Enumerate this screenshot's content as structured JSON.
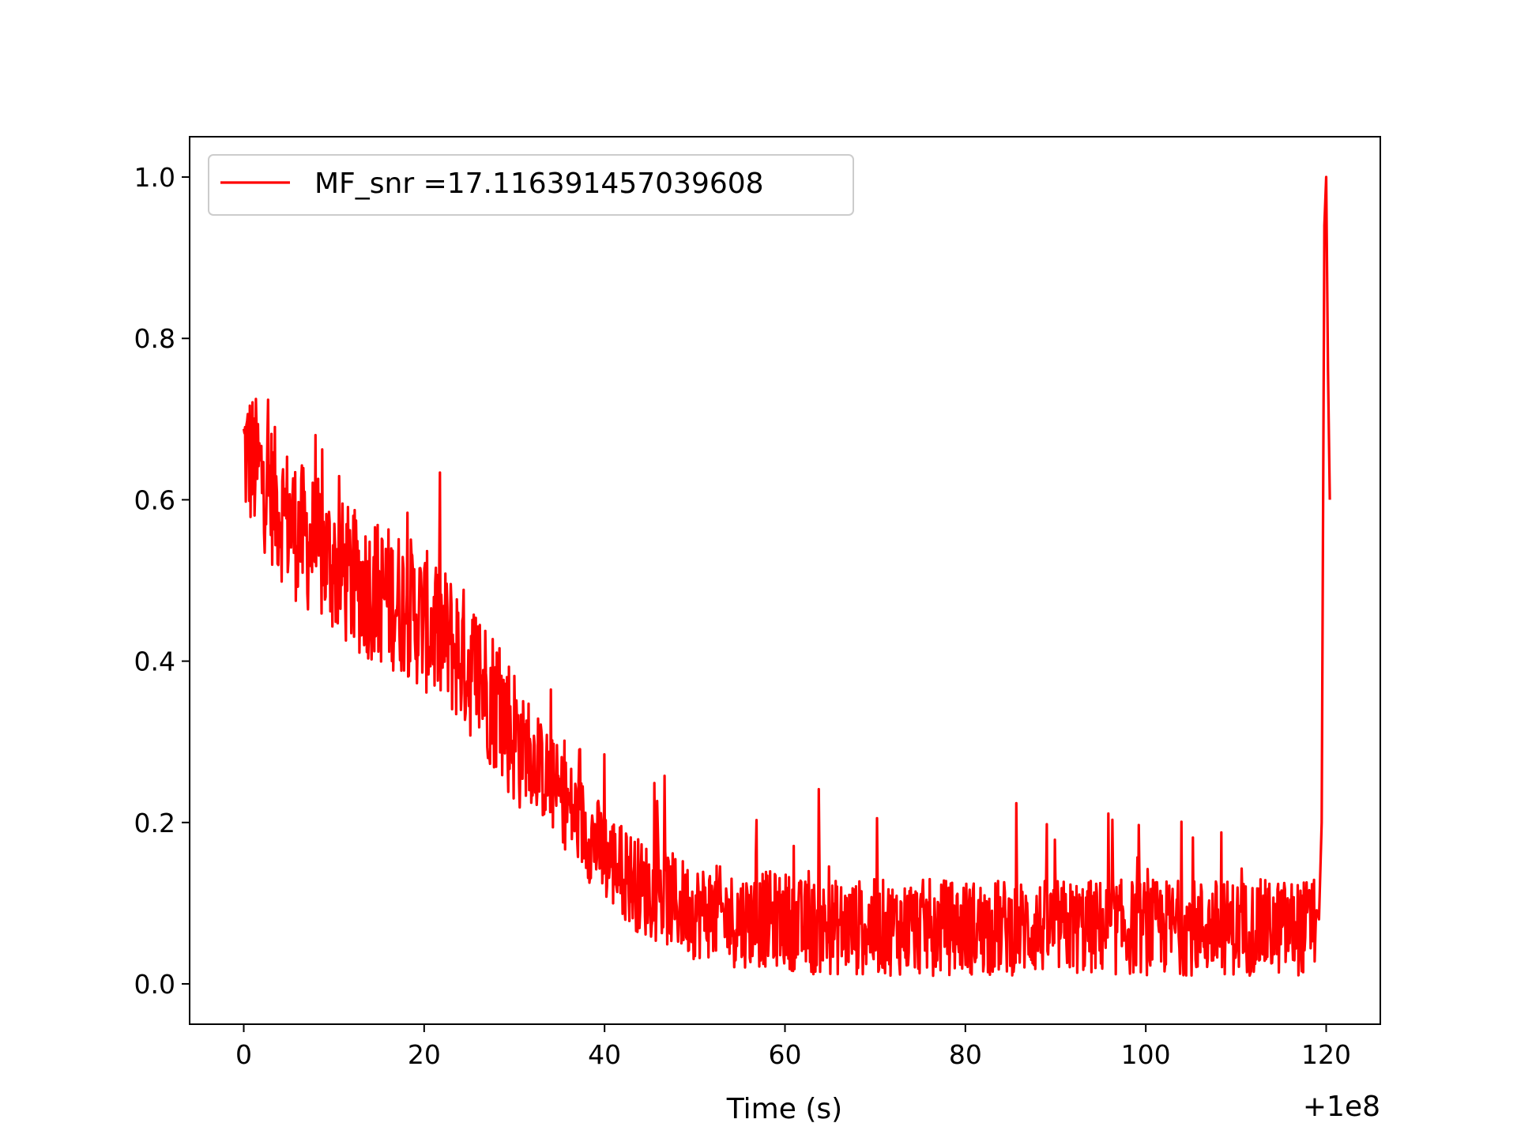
{
  "chart_data": {
    "type": "line",
    "title": "",
    "xlabel": "Time (s)",
    "ylabel": "",
    "x_offset_label": "+1e8",
    "xlim": [
      -6,
      126
    ],
    "ylim": [
      -0.05,
      1.05
    ],
    "x_ticks": [
      0,
      20,
      40,
      60,
      80,
      100,
      120
    ],
    "x_tick_labels": [
      "0",
      "20",
      "40",
      "60",
      "80",
      "100",
      "120"
    ],
    "y_ticks": [
      0.0,
      0.2,
      0.4,
      0.6,
      0.8,
      1.0
    ],
    "y_tick_labels": [
      "0.0",
      "0.2",
      "0.4",
      "0.6",
      "0.8",
      "1.0"
    ],
    "grid": false,
    "legend_position": "top-left",
    "series": [
      {
        "name": "MF_snr =17.116391457039608",
        "color": "#ff0000",
        "x": [
          0,
          2,
          4,
          6,
          8,
          10,
          12,
          14,
          16,
          18,
          20,
          22,
          24,
          26,
          28,
          30,
          32,
          34,
          36,
          38,
          40,
          42,
          44,
          46,
          48,
          50,
          52,
          54,
          56,
          58,
          60,
          62,
          64,
          66,
          68,
          70,
          72,
          74,
          76,
          78,
          80,
          82,
          84,
          86,
          88,
          90,
          92,
          94,
          96,
          98,
          100,
          102,
          104,
          106,
          108,
          110,
          112,
          114,
          116,
          118,
          119.2,
          119.5,
          119.8,
          120.0,
          120.2,
          120.4
        ],
        "values": [
          0.66,
          0.63,
          0.59,
          0.56,
          0.54,
          0.52,
          0.5,
          0.49,
          0.48,
          0.47,
          0.45,
          0.43,
          0.41,
          0.38,
          0.35,
          0.31,
          0.28,
          0.25,
          0.22,
          0.19,
          0.16,
          0.14,
          0.12,
          0.11,
          0.1,
          0.09,
          0.09,
          0.08,
          0.08,
          0.08,
          0.08,
          0.07,
          0.07,
          0.07,
          0.07,
          0.07,
          0.07,
          0.07,
          0.07,
          0.07,
          0.07,
          0.07,
          0.07,
          0.07,
          0.07,
          0.07,
          0.07,
          0.07,
          0.07,
          0.07,
          0.07,
          0.07,
          0.07,
          0.07,
          0.07,
          0.07,
          0.07,
          0.07,
          0.07,
          0.07,
          0.08,
          0.2,
          0.94,
          1.0,
          0.76,
          0.6
        ]
      }
    ]
  }
}
